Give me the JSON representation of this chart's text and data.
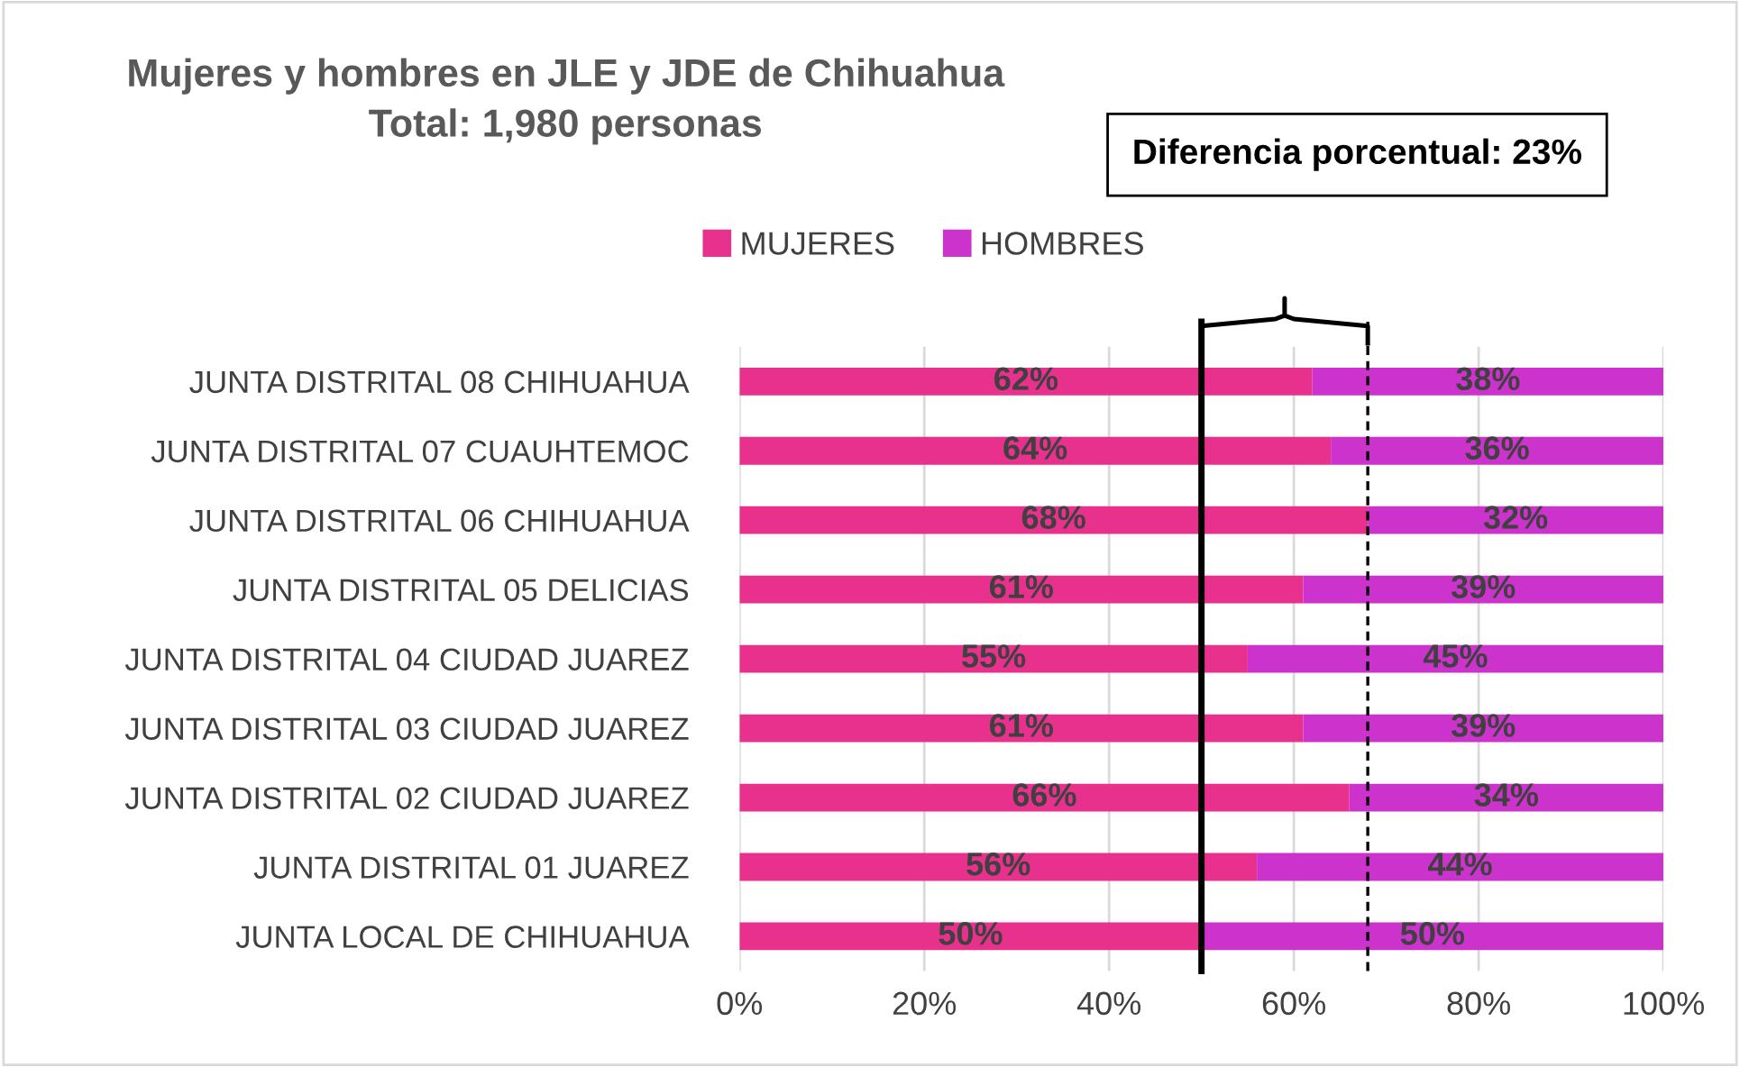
{
  "chart_data": {
    "type": "bar",
    "orientation": "horizontal",
    "stacked": true,
    "title": "Mujeres y hombres en JLE y JDE de Chihuahua\nTotal: 1,980 personas",
    "annotations": [
      "Diferencia porcentual: 23%"
    ],
    "categories": [
      "JUNTA DISTRITAL 08 CHIHUAHUA",
      "JUNTA DISTRITAL 07 CUAUHTEMOC",
      "JUNTA DISTRITAL 06 CHIHUAHUA",
      "JUNTA DISTRITAL 05 DELICIAS",
      "JUNTA DISTRITAL 04 CIUDAD JUAREZ",
      "JUNTA DISTRITAL 03 CIUDAD JUAREZ",
      "JUNTA DISTRITAL 02 CIUDAD JUAREZ",
      "JUNTA DISTRITAL 01 JUAREZ",
      "JUNTA LOCAL DE CHIHUAHUA"
    ],
    "series": [
      {
        "name": "MUJERES",
        "color": "#e7318d",
        "values": [
          62,
          64,
          68,
          61,
          55,
          61,
          66,
          56,
          50
        ],
        "value_labels": [
          "62%",
          "64%",
          "68%",
          "61%",
          "55%",
          "61%",
          "66%",
          "56%",
          "50%"
        ]
      },
      {
        "name": "HOMBRES",
        "color": "#cc33cc",
        "values": [
          38,
          36,
          32,
          39,
          45,
          39,
          34,
          44,
          50
        ],
        "value_labels": [
          "38%",
          "36%",
          "32%",
          "39%",
          "45%",
          "39%",
          "34%",
          "44%",
          "50%"
        ]
      }
    ],
    "xlim": [
      0,
      100
    ],
    "xticks": [
      {
        "value": 0,
        "label": "0%"
      },
      {
        "value": 20,
        "label": "20%"
      },
      {
        "value": 40,
        "label": "40%"
      },
      {
        "value": 60,
        "label": "60%"
      },
      {
        "value": 80,
        "label": "80%"
      },
      {
        "value": 100,
        "label": "100%"
      }
    ],
    "ref_lines": [
      {
        "axis": "x",
        "value": 50,
        "color": "#000000",
        "line_style": "solid"
      },
      {
        "axis": "x",
        "value": 68,
        "color": "#000000",
        "line_style": "dashed"
      }
    ],
    "grid": "x",
    "legend": "top"
  }
}
